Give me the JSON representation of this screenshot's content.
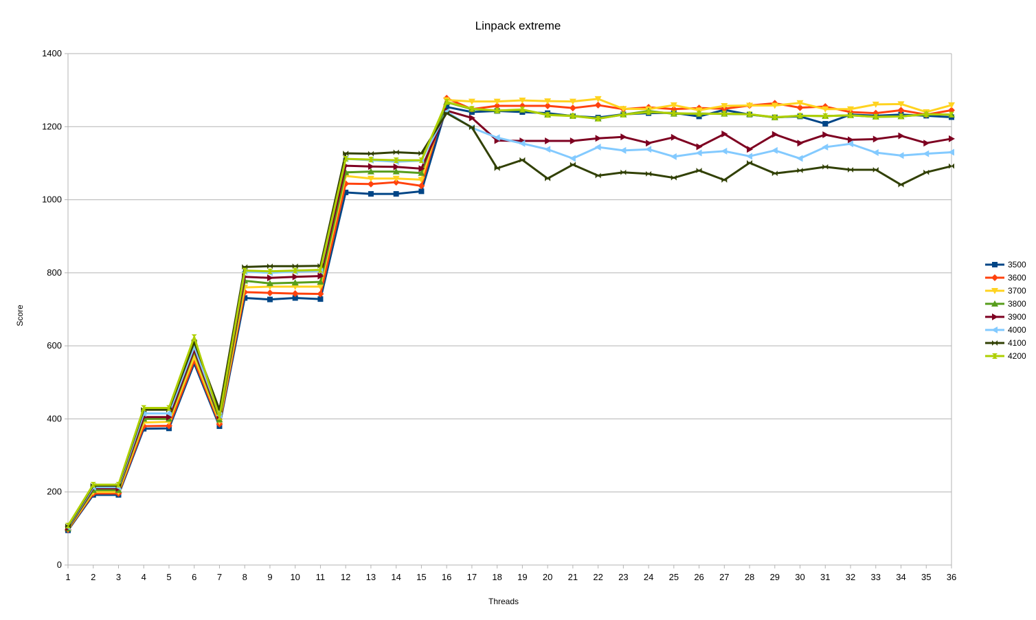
{
  "chart_data": {
    "type": "line",
    "title": "Linpack extreme",
    "xlabel": "Threads",
    "ylabel": "Score",
    "ylim": [
      0,
      1400
    ],
    "y_ticks": [
      0,
      200,
      400,
      600,
      800,
      1000,
      1200,
      1400
    ],
    "x": [
      1,
      2,
      3,
      4,
      5,
      6,
      7,
      8,
      9,
      10,
      11,
      12,
      13,
      14,
      15,
      16,
      17,
      18,
      19,
      20,
      21,
      22,
      23,
      24,
      25,
      26,
      27,
      28,
      29,
      30,
      31,
      32,
      33,
      34,
      35,
      36
    ],
    "grid": "horizontal",
    "legend_position": "right",
    "series": [
      {
        "name": "3500",
        "color": "#004586",
        "marker": "square",
        "values": [
          95,
          192,
          192,
          373,
          374,
          552,
          380,
          731,
          727,
          731,
          728,
          1020,
          1016,
          1016,
          1023,
          1254,
          1240,
          1243,
          1240,
          1237,
          1229,
          1225,
          1234,
          1237,
          1238,
          1228,
          1246,
          1233,
          1226,
          1228,
          1208,
          1233,
          1230,
          1233,
          1230,
          1226
        ]
      },
      {
        "name": "3600",
        "color": "#ff420e",
        "marker": "diamond",
        "values": [
          97,
          196,
          196,
          380,
          381,
          560,
          386,
          747,
          745,
          743,
          742,
          1044,
          1043,
          1048,
          1038,
          1278,
          1248,
          1257,
          1257,
          1257,
          1251,
          1259,
          1248,
          1253,
          1248,
          1251,
          1249,
          1258,
          1264,
          1252,
          1255,
          1240,
          1237,
          1245,
          1233,
          1245
        ]
      },
      {
        "name": "3700",
        "color": "#ffd320",
        "marker": "triangle-down",
        "values": [
          99,
          200,
          200,
          390,
          392,
          570,
          392,
          760,
          762,
          762,
          762,
          1065,
          1058,
          1058,
          1055,
          1273,
          1269,
          1269,
          1272,
          1270,
          1269,
          1276,
          1249,
          1248,
          1259,
          1245,
          1257,
          1258,
          1258,
          1265,
          1248,
          1248,
          1261,
          1262,
          1240,
          1259
        ]
      },
      {
        "name": "3800",
        "color": "#579d1c",
        "marker": "triangle-up",
        "values": [
          100,
          205,
          205,
          400,
          400,
          585,
          398,
          778,
          771,
          773,
          775,
          1075,
          1077,
          1077,
          1073,
          1267,
          1248,
          1244,
          1246,
          1233,
          1230,
          1222,
          1233,
          1243,
          1235,
          1236,
          1235,
          1234,
          1225,
          1230,
          1229,
          1231,
          1227,
          1228,
          1234,
          1233
        ]
      },
      {
        "name": "3900",
        "color": "#7e0021",
        "marker": "triangle-right",
        "values": [
          102,
          210,
          210,
          405,
          405,
          590,
          405,
          789,
          786,
          789,
          791,
          1093,
          1091,
          1090,
          1085,
          1244,
          1224,
          1162,
          1161,
          1161,
          1161,
          1168,
          1172,
          1155,
          1171,
          1145,
          1180,
          1138,
          1179,
          1155,
          1178,
          1164,
          1166,
          1175,
          1155,
          1167
        ]
      },
      {
        "name": "4000",
        "color": "#83caff",
        "marker": "triangle-left",
        "values": [
          104,
          213,
          213,
          415,
          415,
          598,
          410,
          803,
          800,
          803,
          805,
          1112,
          1108,
          1104,
          1107,
          1241,
          1197,
          1170,
          1154,
          1138,
          1113,
          1144,
          1135,
          1138,
          1118,
          1128,
          1133,
          1119,
          1135,
          1113,
          1144,
          1153,
          1129,
          1121,
          1126,
          1130
        ]
      },
      {
        "name": "4100",
        "color": "#314004",
        "marker": "bowtie",
        "values": [
          106,
          217,
          217,
          425,
          425,
          610,
          425,
          816,
          818,
          818,
          819,
          1127,
          1126,
          1130,
          1127,
          1237,
          1198,
          1086,
          1109,
          1058,
          1096,
          1066,
          1075,
          1071,
          1060,
          1080,
          1054,
          1101,
          1072,
          1080,
          1090,
          1082,
          1082,
          1041,
          1075,
          1092
        ]
      },
      {
        "name": "4200",
        "color": "#aecf00",
        "marker": "hourglass",
        "values": [
          108,
          220,
          220,
          430,
          430,
          624,
          405,
          806,
          804,
          806,
          808,
          1112,
          1110,
          1108,
          1108,
          1268,
          1249,
          1244,
          1247,
          1232,
          1229,
          1222,
          1233,
          1240,
          1237,
          1235,
          1236,
          1234,
          1226,
          1230,
          1229,
          1231,
          1227,
          1228,
          1234,
          1233
        ]
      }
    ]
  }
}
